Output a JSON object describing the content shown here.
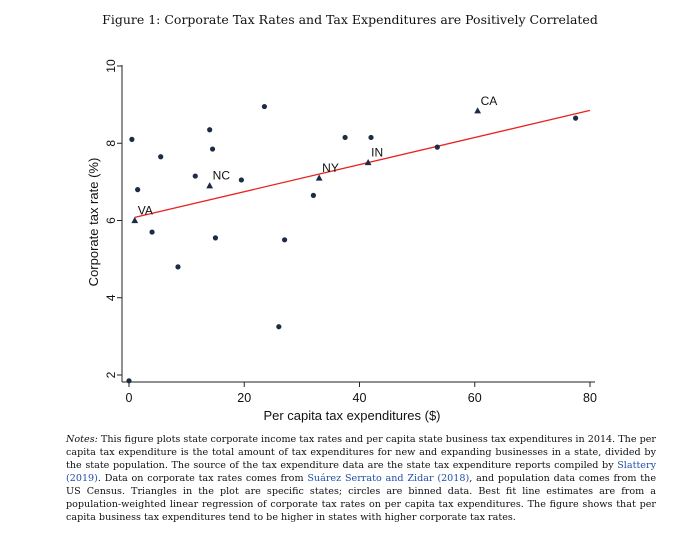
{
  "figure": {
    "caption": "Figure 1: Corporate Tax Rates and Tax Expenditures are Positively Correlated"
  },
  "chart_data": {
    "type": "scatter",
    "title": "Figure 1: Corporate Tax Rates and Tax Expenditures are Positively Correlated",
    "xlabel": "Per capita tax expenditures ($)",
    "ylabel": "Corporate tax rate (%)",
    "xlim": [
      0,
      80
    ],
    "ylim": [
      2,
      10
    ],
    "xticks": [
      0,
      20,
      40,
      60,
      80
    ],
    "yticks": [
      2,
      4,
      6,
      8,
      10
    ],
    "grid": false,
    "colors": {
      "points": "#1d2b46",
      "fit_line": "#e8231f",
      "axis": "#222222"
    },
    "binned_points": [
      {
        "x": 0.5,
        "y": 8.1
      },
      {
        "x": 1.5,
        "y": 6.8
      },
      {
        "x": 5.5,
        "y": 7.65
      },
      {
        "x": 4,
        "y": 5.7
      },
      {
        "x": 8.5,
        "y": 4.8
      },
      {
        "x": 11.5,
        "y": 7.15
      },
      {
        "x": 14,
        "y": 8.35
      },
      {
        "x": 14.5,
        "y": 7.85
      },
      {
        "x": 15,
        "y": 5.55
      },
      {
        "x": 19.5,
        "y": 7.05
      },
      {
        "x": 23.5,
        "y": 8.95
      },
      {
        "x": 26,
        "y": 3.25
      },
      {
        "x": 27,
        "y": 5.5
      },
      {
        "x": 32,
        "y": 6.65
      },
      {
        "x": 37.5,
        "y": 8.15
      },
      {
        "x": 42,
        "y": 8.15
      },
      {
        "x": 53.5,
        "y": 7.9
      },
      {
        "x": 77.5,
        "y": 8.65
      },
      {
        "x": 0,
        "y": 1.85
      }
    ],
    "states": [
      {
        "label": "VA",
        "x": 1,
        "y": 6.0
      },
      {
        "label": "NC",
        "x": 14,
        "y": 6.9
      },
      {
        "label": "NY",
        "x": 33,
        "y": 7.1
      },
      {
        "label": "IN",
        "x": 41.5,
        "y": 7.5
      },
      {
        "label": "CA",
        "x": 60.5,
        "y": 8.84
      }
    ],
    "fit_line": {
      "x": [
        1,
        80
      ],
      "y": [
        6.08,
        8.85
      ]
    }
  },
  "notes": {
    "lead": "Notes:",
    "text_1": " This figure plots state corporate income tax rates and per capita state business tax expenditures in 2014. The per capita tax expenditure is the total amount of tax expenditures for new and expanding businesses in a state, divided by the state population. The source of the tax expenditure data are the state tax expenditure reports compiled by ",
    "cite_1": "Slattery (2019)",
    "text_2": ". Data on corporate tax rates comes from ",
    "cite_2": "Suárez Serrato and Zidar (2018)",
    "text_3": ", and population data comes from the US Census. Triangles in the plot are specific states; circles are binned data. Best fit line estimates are from a population-weighted linear regression of corporate tax rates on per capita tax expenditures. The figure shows that per capita business tax expenditures tend to be higher in states with higher corporate tax rates."
  }
}
